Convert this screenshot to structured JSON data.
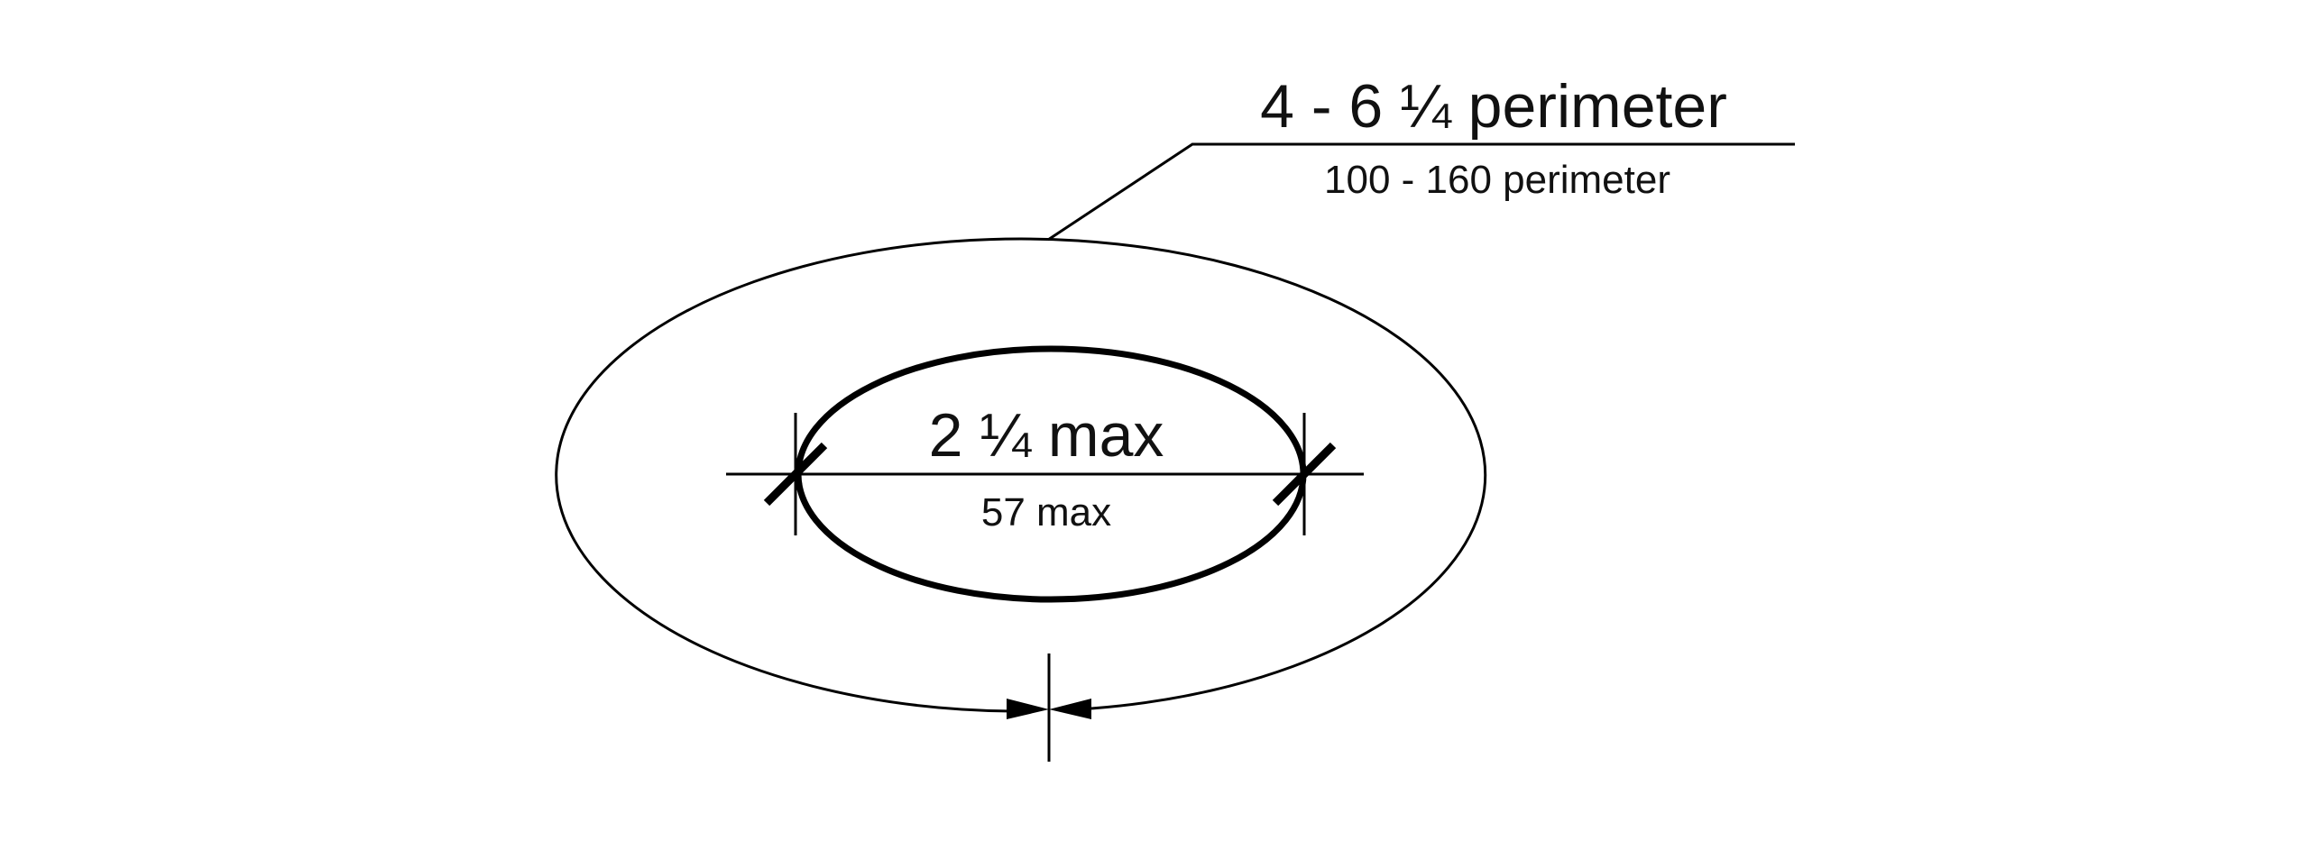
{
  "colors": {
    "line": "#000000",
    "text": "#111111",
    "background": "#ffffff"
  },
  "labels": {
    "perimeter_inches": "4 - 6 ¼ perimeter",
    "perimeter_mm": "100 - 160 perimeter",
    "width_inches": "2 ¼ max",
    "width_mm": "57 max"
  }
}
